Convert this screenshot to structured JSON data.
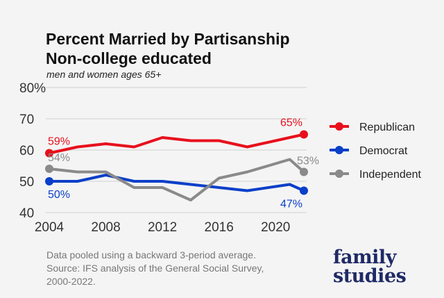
{
  "header": {
    "title_line1": "Percent Married by Partisanship",
    "title_line2": "Non-college educated",
    "subtitle": "men and women ages 65+"
  },
  "footer": {
    "note_line1": "Data pooled using a backward 3-period average.",
    "note_line2": "Source: IFS analysis of the General Social Survey,",
    "note_line3": "2000-2022.",
    "logo_line1": "family",
    "logo_line2": "studies"
  },
  "chart_data": {
    "type": "line",
    "x": [
      2004,
      2006,
      2008,
      2010,
      2012,
      2014,
      2016,
      2018,
      2021,
      2022
    ],
    "xticks": [
      "2004",
      "2008",
      "2012",
      "2016",
      "2020"
    ],
    "yticks": [
      "40",
      "50",
      "60",
      "70",
      "80%"
    ],
    "ylim": [
      40,
      80
    ],
    "xlim": [
      2004,
      2022
    ],
    "grid": true,
    "legend": "right",
    "series": [
      {
        "name": "Republican",
        "color": "#e8101c",
        "values": [
          59,
          61,
          62,
          61,
          64,
          63,
          63,
          61,
          64,
          65
        ],
        "start_label": "59%",
        "end_label": "65%"
      },
      {
        "name": "Democrat",
        "color": "#0a3fc9",
        "values": [
          50,
          50,
          52,
          50,
          50,
          49,
          48,
          47,
          49,
          47
        ],
        "start_label": "50%",
        "end_label": "47%"
      },
      {
        "name": "Independent",
        "color": "#8a8a8a",
        "values": [
          54,
          53,
          53,
          48,
          48,
          44,
          51,
          53,
          57,
          53
        ],
        "start_label": "54%",
        "end_label": "53%"
      }
    ]
  }
}
